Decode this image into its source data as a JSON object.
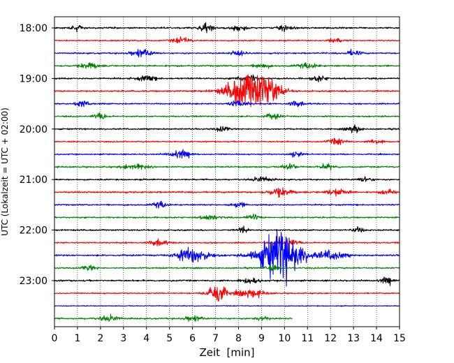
{
  "chart_data": {
    "type": "line",
    "title": "",
    "xlabel": "Zeit  [min]",
    "ylabel": "UTC (Lokalzeit = UTC + 02:00)",
    "xlim": [
      0,
      15
    ],
    "xticks": [
      "0",
      "1",
      "2",
      "3",
      "4",
      "5",
      "6",
      "7",
      "8",
      "9",
      "10",
      "11",
      "12",
      "13",
      "14",
      "15"
    ],
    "yticks": [
      "18:00",
      "19:00",
      "20:00",
      "21:00",
      "22:00",
      "23:00"
    ],
    "grid": "vertical dotted",
    "trace_interval_minutes": 15,
    "colors": [
      "#000000",
      "#ff0000",
      "#0000ff",
      "#008000"
    ],
    "traces": [
      {
        "start": "18:00",
        "color": "#000000",
        "end_min": 15,
        "noise": 0.9,
        "events": [
          [
            1.0,
            1.2,
            0.25
          ],
          [
            6.6,
            2.2,
            0.3
          ],
          [
            8.0,
            1.8,
            0.3
          ],
          [
            10.0,
            1.6,
            0.3
          ]
        ]
      },
      {
        "start": "18:15",
        "color": "#ff0000",
        "end_min": 15,
        "noise": 0.7,
        "events": [
          [
            5.5,
            1.4,
            0.4
          ],
          [
            12.2,
            1.3,
            0.3
          ]
        ]
      },
      {
        "start": "18:30",
        "color": "#0000ff",
        "end_min": 15,
        "noise": 0.8,
        "events": [
          [
            3.8,
            1.8,
            0.5
          ],
          [
            8.0,
            1.4,
            0.3
          ],
          [
            13.0,
            1.5,
            0.3
          ]
        ]
      },
      {
        "start": "18:45",
        "color": "#008000",
        "end_min": 15,
        "noise": 0.9,
        "events": [
          [
            1.5,
            1.6,
            0.4
          ],
          [
            9.0,
            1.4,
            0.3
          ],
          [
            11.0,
            1.6,
            0.4
          ]
        ]
      },
      {
        "start": "19:00",
        "color": "#000000",
        "end_min": 15,
        "noise": 0.9,
        "events": [
          [
            4.0,
            1.5,
            0.4
          ],
          [
            8.4,
            2.0,
            0.4
          ],
          [
            11.5,
            1.5,
            0.3
          ]
        ]
      },
      {
        "start": "19:15",
        "color": "#ff0000",
        "end_min": 15,
        "noise": 0.9,
        "events": [
          [
            8.4,
            9.5,
            0.85
          ],
          [
            9.4,
            5.0,
            0.5
          ]
        ]
      },
      {
        "start": "19:30",
        "color": "#0000ff",
        "end_min": 15,
        "noise": 0.8,
        "events": [
          [
            1.2,
            1.8,
            0.3
          ],
          [
            8.0,
            1.8,
            0.4
          ],
          [
            10.5,
            1.4,
            0.3
          ]
        ]
      },
      {
        "start": "19:45",
        "color": "#008000",
        "end_min": 15,
        "noise": 0.8,
        "events": [
          [
            2.0,
            1.5,
            0.3
          ],
          [
            9.5,
            1.5,
            0.3
          ]
        ]
      },
      {
        "start": "20:00",
        "color": "#000000",
        "end_min": 15,
        "noise": 0.8,
        "events": [
          [
            7.3,
            1.4,
            0.3
          ],
          [
            13.0,
            2.0,
            0.3
          ]
        ]
      },
      {
        "start": "20:15",
        "color": "#ff0000",
        "end_min": 15,
        "noise": 0.7,
        "events": [
          [
            12.3,
            1.6,
            0.4
          ],
          [
            14.0,
            1.4,
            0.3
          ]
        ]
      },
      {
        "start": "20:30",
        "color": "#0000ff",
        "end_min": 15,
        "noise": 0.7,
        "events": [
          [
            5.5,
            2.0,
            0.5
          ],
          [
            10.5,
            1.3,
            0.3
          ]
        ]
      },
      {
        "start": "20:45",
        "color": "#008000",
        "end_min": 15,
        "noise": 0.8,
        "events": [
          [
            3.5,
            1.6,
            0.5
          ],
          [
            10.2,
            1.7,
            0.3
          ],
          [
            11.8,
            1.4,
            0.3
          ]
        ]
      },
      {
        "start": "21:00",
        "color": "#000000",
        "end_min": 15,
        "noise": 0.8,
        "events": [
          [
            9.0,
            1.6,
            0.4
          ],
          [
            13.5,
            1.4,
            0.3
          ]
        ]
      },
      {
        "start": "21:15",
        "color": "#ff0000",
        "end_min": 15,
        "noise": 0.9,
        "events": [
          [
            9.8,
            2.2,
            0.5
          ],
          [
            12.3,
            1.8,
            0.5
          ],
          [
            14.5,
            1.5,
            0.3
          ]
        ]
      },
      {
        "start": "21:30",
        "color": "#0000ff",
        "end_min": 15,
        "noise": 0.8,
        "events": [
          [
            4.6,
            2.0,
            0.3
          ],
          [
            8.0,
            1.4,
            0.3
          ]
        ]
      },
      {
        "start": "21:45",
        "color": "#008000",
        "end_min": 15,
        "noise": 0.8,
        "events": [
          [
            6.8,
            1.4,
            0.4
          ],
          [
            8.6,
            1.5,
            0.3
          ]
        ]
      },
      {
        "start": "22:00",
        "color": "#000000",
        "end_min": 15,
        "noise": 0.8,
        "events": [
          [
            8.2,
            1.8,
            0.2
          ],
          [
            13.2,
            1.4,
            0.3
          ]
        ]
      },
      {
        "start": "22:15",
        "color": "#ff0000",
        "end_min": 15,
        "noise": 0.8,
        "events": [
          [
            4.5,
            1.4,
            0.4
          ],
          [
            10.2,
            1.6,
            0.4
          ]
        ]
      },
      {
        "start": "22:30",
        "color": "#0000ff",
        "end_min": 15,
        "noise": 0.9,
        "events": [
          [
            6.0,
            4.0,
            0.7
          ],
          [
            9.8,
            13.5,
            0.9
          ],
          [
            12.0,
            2.5,
            0.6
          ]
        ]
      },
      {
        "start": "22:45",
        "color": "#008000",
        "end_min": 15,
        "noise": 0.8,
        "events": [
          [
            1.5,
            1.4,
            0.3
          ],
          [
            9.5,
            1.4,
            0.3
          ]
        ]
      },
      {
        "start": "23:00",
        "color": "#000000",
        "end_min": 15,
        "noise": 0.9,
        "events": [
          [
            8.5,
            1.5,
            0.4
          ],
          [
            14.5,
            1.8,
            0.3
          ]
        ]
      },
      {
        "start": "23:15",
        "color": "#ff0000",
        "end_min": 15,
        "noise": 0.7,
        "events": [
          [
            7.05,
            6.5,
            0.35
          ],
          [
            8.5,
            2.2,
            0.6
          ]
        ]
      },
      {
        "start": "23:30",
        "color": "#0000ff",
        "end_min": 15,
        "noise": 0.5,
        "events": []
      },
      {
        "start": "23:45",
        "color": "#008000",
        "end_min": 10.35,
        "noise": 0.8,
        "events": [
          [
            2.4,
            1.8,
            0.4
          ],
          [
            6.0,
            1.3,
            0.4
          ],
          [
            9.0,
            1.3,
            0.3
          ]
        ]
      }
    ]
  }
}
